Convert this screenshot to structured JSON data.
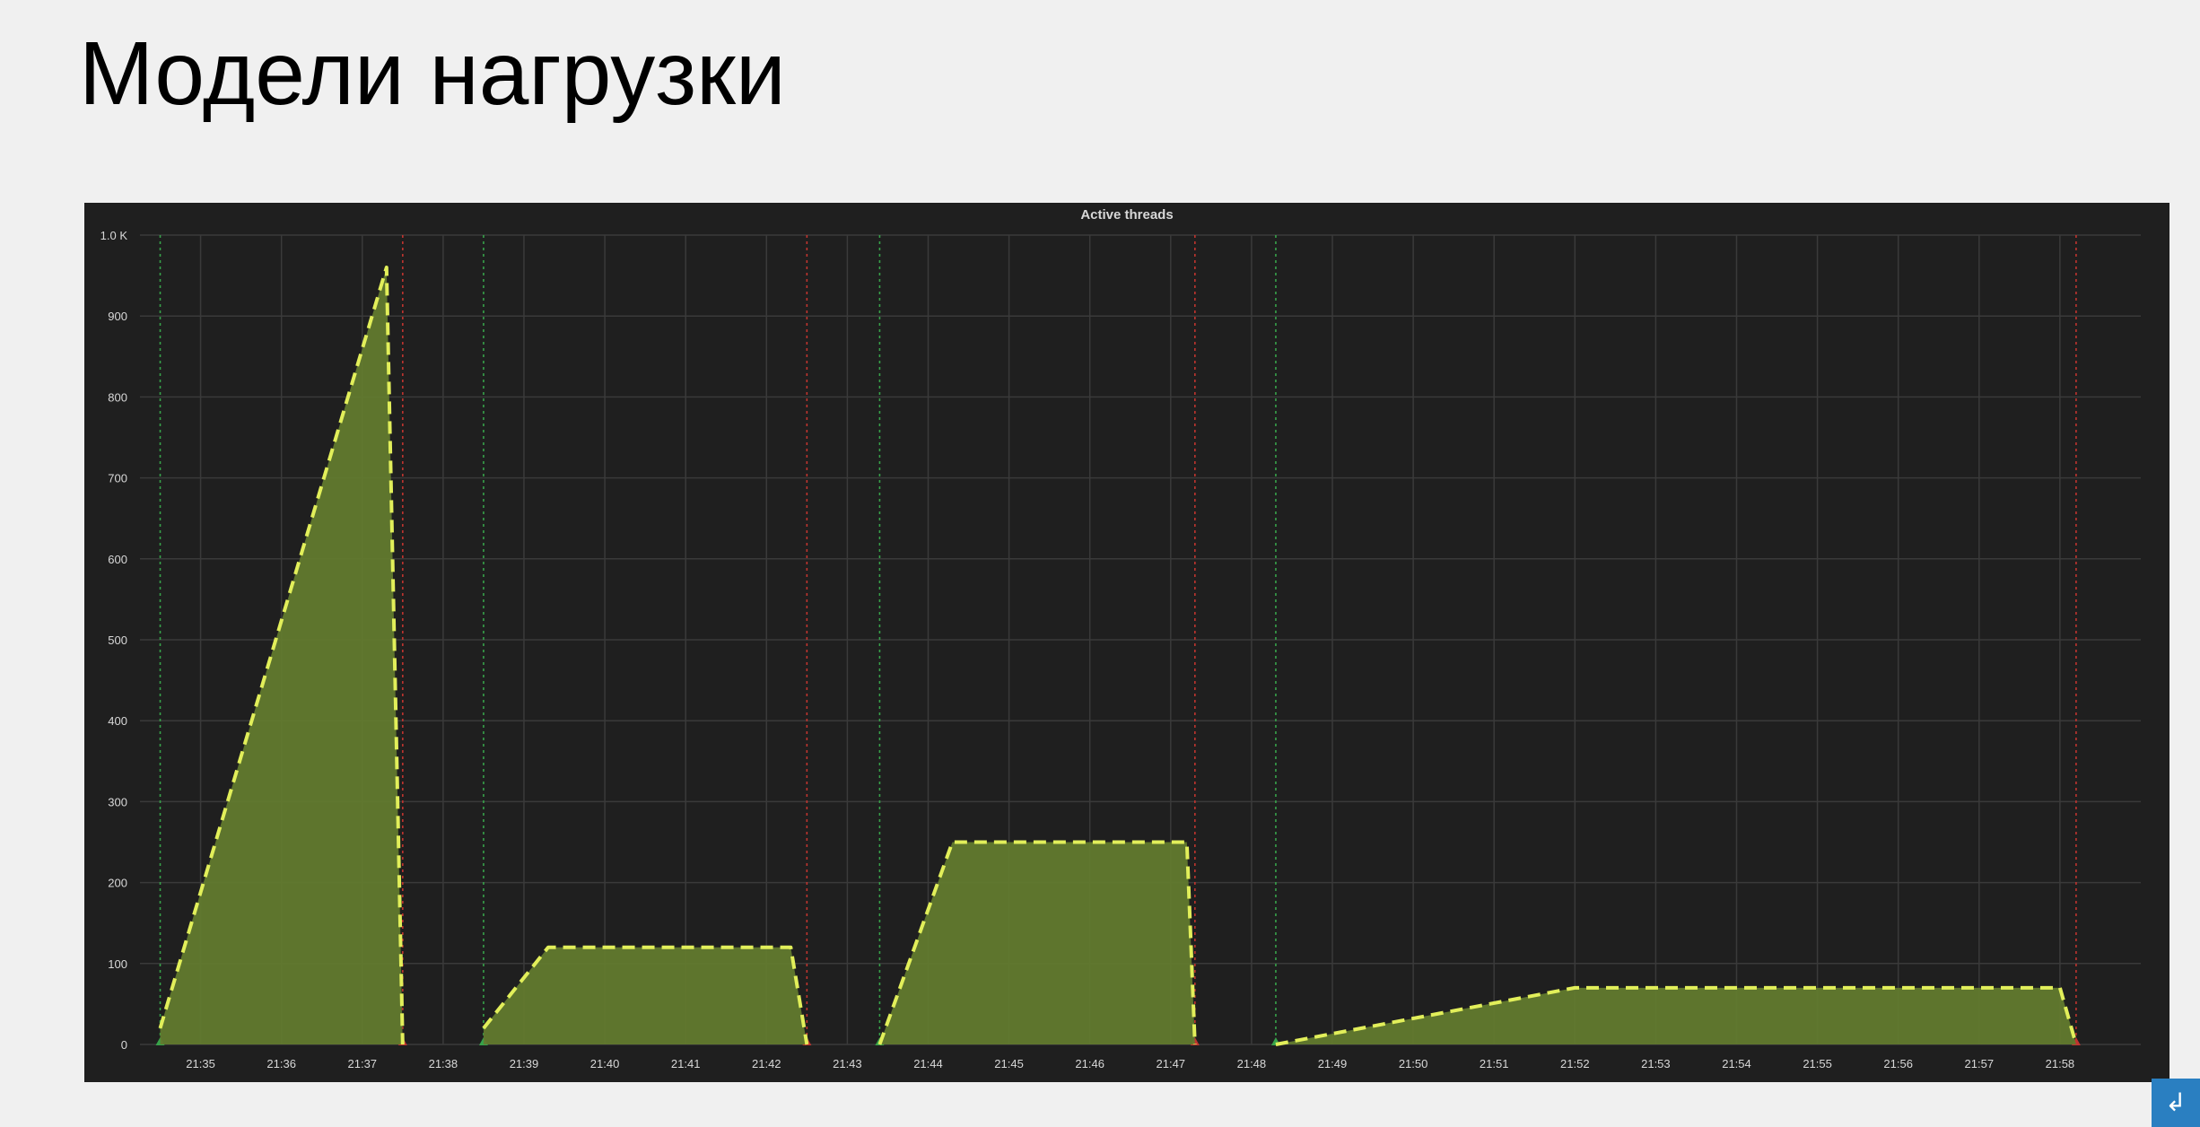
{
  "slide": {
    "title": "Модели нагрузки"
  },
  "chart_data": {
    "type": "area",
    "title": "Active threads",
    "xlabel": "",
    "ylabel": "",
    "ylim": [
      0,
      1000
    ],
    "grid": true,
    "legend": "none",
    "y_ticks": [
      {
        "value": 0,
        "label": "0"
      },
      {
        "value": 100,
        "label": "100"
      },
      {
        "value": 200,
        "label": "200"
      },
      {
        "value": 300,
        "label": "300"
      },
      {
        "value": 400,
        "label": "400"
      },
      {
        "value": 500,
        "label": "500"
      },
      {
        "value": 600,
        "label": "600"
      },
      {
        "value": 700,
        "label": "700"
      },
      {
        "value": 800,
        "label": "800"
      },
      {
        "value": 900,
        "label": "900"
      },
      {
        "value": 1000,
        "label": "1.0 K"
      }
    ],
    "x_ticks": [
      "21:35",
      "21:36",
      "21:37",
      "21:38",
      "21:39",
      "21:40",
      "21:41",
      "21:42",
      "21:43",
      "21:44",
      "21:45",
      "21:46",
      "21:47",
      "21:48",
      "21:49",
      "21:50",
      "21:51",
      "21:52",
      "21:53",
      "21:54",
      "21:55",
      "21:56",
      "21:57",
      "21:58"
    ],
    "xlim_minutes": [
      34.25,
      59.0
    ],
    "segments": [
      {
        "x": [
          "21:34.5",
          "21:37.3",
          "21:37.5"
        ],
        "y": [
          20,
          960,
          0
        ]
      },
      {
        "x": [
          "21:38.5",
          "21:39.3",
          "21:42.3",
          "21:42.5"
        ],
        "y": [
          20,
          120,
          120,
          0
        ]
      },
      {
        "x": [
          "21:43.4",
          "21:44.3",
          "21:47.2",
          "21:47.3"
        ],
        "y": [
          0,
          250,
          250,
          0
        ]
      },
      {
        "x": [
          "21:48.3",
          "21:52.0",
          "21:58.0",
          "21:58.2"
        ],
        "y": [
          0,
          70,
          70,
          0
        ]
      }
    ],
    "markers": [
      {
        "type": "start",
        "x": "21:34.5"
      },
      {
        "type": "stop",
        "x": "21:37.5"
      },
      {
        "type": "start",
        "x": "21:38.5"
      },
      {
        "type": "stop",
        "x": "21:42.5"
      },
      {
        "type": "start",
        "x": "21:43.4"
      },
      {
        "type": "stop",
        "x": "21:47.3"
      },
      {
        "type": "start",
        "x": "21:48.3"
      },
      {
        "type": "stop",
        "x": "21:58.2"
      }
    ],
    "colors": {
      "background": "#1f1f1f",
      "grid": "#3a3a3a",
      "fill": "#627a2e",
      "line": "#e2ef5a",
      "start_marker": "#37a24a",
      "stop_marker": "#c0342f",
      "text": "#d8d8d8"
    }
  },
  "icons": {
    "corner": "download-arrow-icon"
  }
}
